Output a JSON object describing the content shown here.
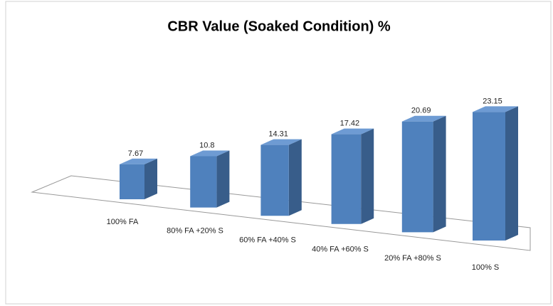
{
  "chart_data": {
    "type": "bar3d",
    "title": "CBR Value (Soaked Condition) %",
    "categories": [
      "100% FA",
      "80% FA +20% S",
      "60% FA +40% S",
      "40% FA +60% S",
      "20% FA +80% S",
      "100% S"
    ],
    "values": [
      7.67,
      10.8,
      14.31,
      17.42,
      20.69,
      23.15
    ],
    "color": "#4f81bd"
  }
}
